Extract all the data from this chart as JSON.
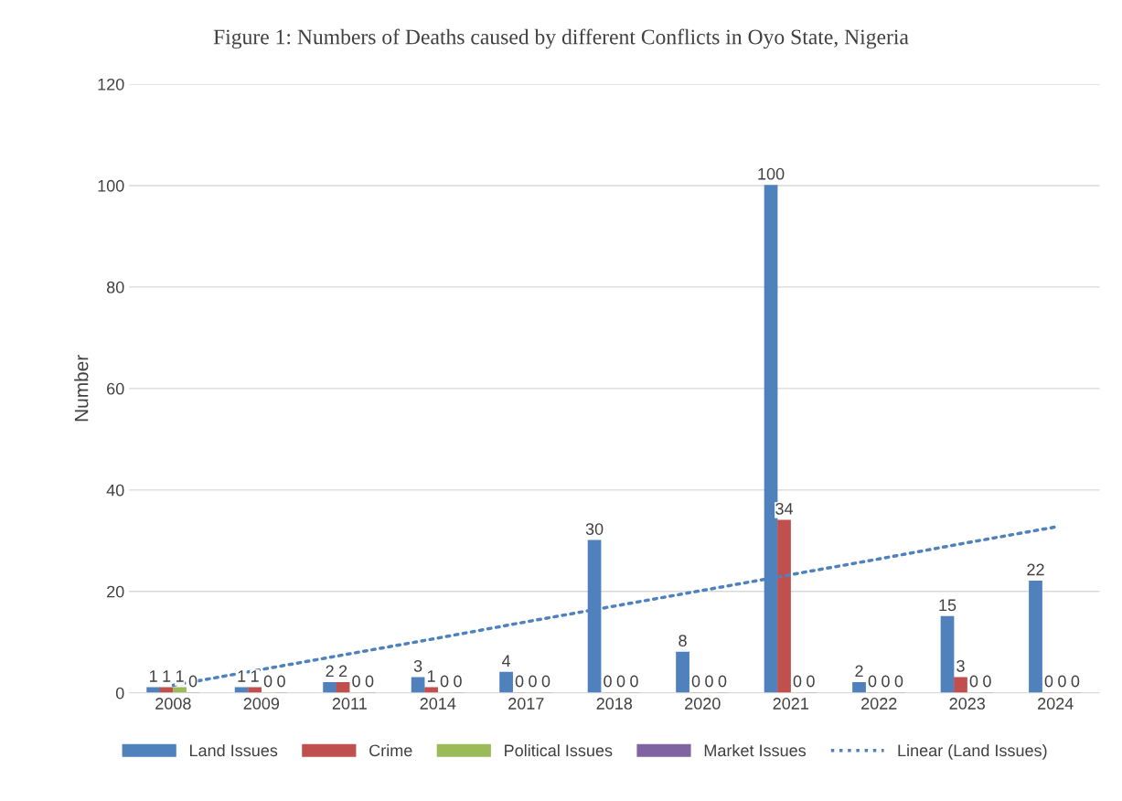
{
  "chart_data": {
    "type": "bar",
    "title": "Figure 1: Numbers of Deaths caused by different Conflicts in Oyo State, Nigeria",
    "ylabel": "Number",
    "categories": [
      "2008",
      "2009",
      "2011",
      "2014",
      "2017",
      "2018",
      "2020",
      "2021",
      "2022",
      "2023",
      "2024"
    ],
    "series": [
      {
        "name": "Land Issues",
        "color": "#4f81bd",
        "values": [
          1,
          1,
          2,
          3,
          4,
          30,
          8,
          100,
          2,
          15,
          22
        ]
      },
      {
        "name": "Crime",
        "color": "#c0504d",
        "values": [
          1,
          1,
          2,
          1,
          0,
          0,
          0,
          34,
          0,
          3,
          0
        ]
      },
      {
        "name": "Political Issues",
        "color": "#9bbb59",
        "values": [
          1,
          0,
          0,
          0,
          0,
          0,
          0,
          0,
          0,
          0,
          0
        ]
      },
      {
        "name": "Market Issues",
        "color": "#8064a2",
        "values": [
          0,
          0,
          0,
          0,
          0,
          0,
          0,
          0,
          0,
          0,
          0
        ]
      },
      {
        "name": "Linear (Land Issues)",
        "type": "line",
        "color": "#4f81bd",
        "line_style": "dotted",
        "values": [
          1.5,
          4.6,
          7.7,
          10.8,
          14.0,
          17.1,
          20.2,
          23.3,
          26.4,
          29.6,
          32.7
        ],
        "value_labels": [
          null,
          null,
          null,
          null,
          null,
          null,
          null,
          null,
          null,
          null,
          null
        ]
      }
    ],
    "ylim": [
      0,
      120
    ],
    "yticks": [
      0,
      20,
      40,
      60,
      80,
      100,
      120
    ],
    "grid": "y",
    "legend": "bottom",
    "data_labels": true
  }
}
